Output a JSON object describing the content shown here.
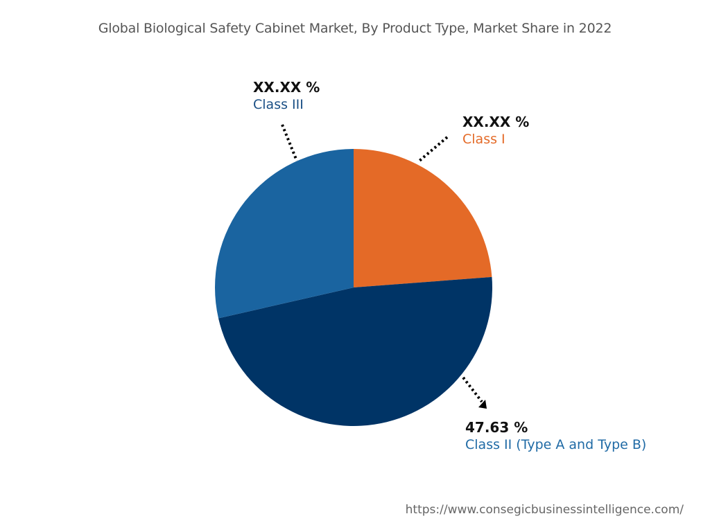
{
  "chart_data": {
    "type": "pie",
    "title": "Global Biological Safety Cabinet Market, By Product Type, Market Share in 2022",
    "slices": [
      {
        "name": "Class I",
        "label": "XX.XX %",
        "value": 23.8,
        "color": "#E46A27",
        "label_color": "#E46A27"
      },
      {
        "name": "Class II (Type A and Type B)",
        "label": "47.63 %",
        "value": 47.63,
        "color": "#003466",
        "label_color": "#1F6AA5"
      },
      {
        "name": "Class III",
        "label": "XX.XX %",
        "value": 28.57,
        "color": "#1A64A0",
        "label_color": "#1A4F85"
      }
    ],
    "start_angle": "12 o'clock",
    "direction": "clockwise",
    "legend": "none"
  },
  "footer": {
    "url": "https://www.consegicbusinessintelligence.com/"
  }
}
